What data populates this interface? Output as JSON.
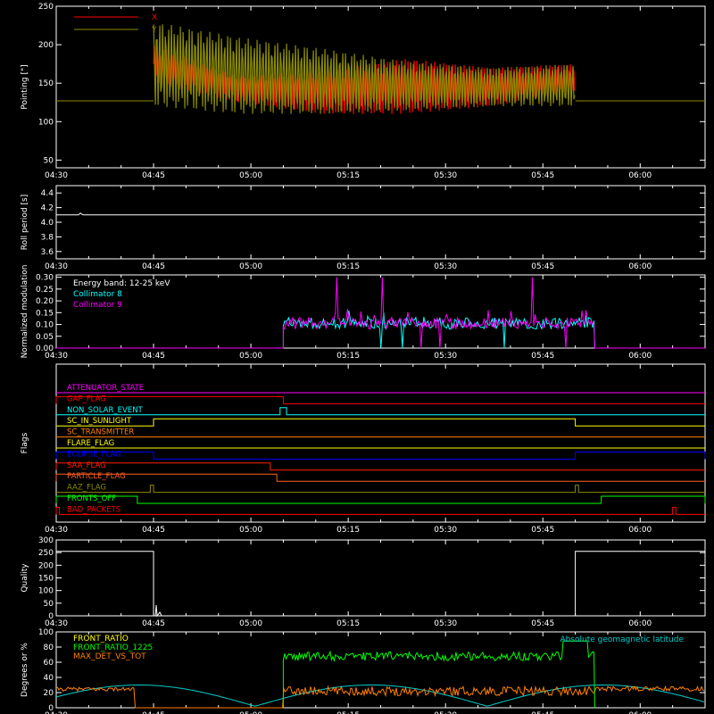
{
  "x_ticks": [
    "04:30",
    "04:45",
    "05:00",
    "05:15",
    "05:30",
    "05:45",
    "06:00"
  ],
  "chart_data": [
    {
      "id": "pointing",
      "type": "line",
      "ylabel": "Pointing [\"]",
      "yticks": [
        "50",
        "100",
        "150",
        "200",
        "250"
      ],
      "ylim": [
        40,
        250
      ],
      "series": [
        {
          "name": "X",
          "color": "#ff0000"
        },
        {
          "name": "Y",
          "color": "#8b8b00"
        }
      ],
      "baseline": 127,
      "x_start": "04:45",
      "x_end": "05:50",
      "x_envelope": [
        [
          150,
          200
        ],
        [
          125,
          160
        ],
        [
          110,
          165
        ],
        [
          110,
          182
        ],
        [
          120,
          170
        ],
        [
          140,
          175
        ]
      ],
      "y_envelope": [
        [
          120,
          230
        ],
        [
          110,
          210
        ],
        [
          110,
          195
        ],
        [
          115,
          178
        ],
        [
          120,
          170
        ],
        [
          120,
          175
        ]
      ]
    },
    {
      "id": "roll",
      "type": "line",
      "ylabel": "Roll period [s]",
      "yticks": [
        "3.6",
        "3.8",
        "4.0",
        "4.2",
        "4.4"
      ],
      "ylim": [
        3.5,
        4.5
      ],
      "series": [
        {
          "name": "",
          "color": "#ffffff",
          "value": 4.1
        }
      ]
    },
    {
      "id": "modulation",
      "type": "line",
      "ylabel": "Normalized modulation",
      "yticks": [
        "0.00",
        "0.05",
        "0.10",
        "0.15",
        "0.20",
        "0.25",
        "0.30"
      ],
      "ylim": [
        0,
        0.31
      ],
      "annotation": "Energy band: 12-25 keV",
      "series": [
        {
          "name": "Collimator 8",
          "color": "#00ffff"
        },
        {
          "name": "Collimator 9",
          "color": "#ff00ff"
        }
      ],
      "active_start": "05:05",
      "active_end": "05:53",
      "mean": 0.1
    },
    {
      "id": "flags",
      "type": "line",
      "ylabel": "Flags",
      "flags": [
        {
          "name": "ATTENUATOR_STATE",
          "color": "#ff00ff"
        },
        {
          "name": "GAP_FLAG",
          "color": "#ff0000"
        },
        {
          "name": "NON_SOLAR_EVENT",
          "color": "#00ffff"
        },
        {
          "name": "SC_IN_SUNLIGHT",
          "color": "#ffff00"
        },
        {
          "name": "SC_TRANSMITTER",
          "color": "#ff8000"
        },
        {
          "name": "FLARE_FLAG",
          "color": "#ffff00"
        },
        {
          "name": "ECLIPSE_FLAG",
          "color": "#0000ff"
        },
        {
          "name": "SAA_FLAG",
          "color": "#ff2000"
        },
        {
          "name": "PARTICLE_FLAG",
          "color": "#ff6020"
        },
        {
          "name": "AAZ_FLAG",
          "color": "#8b8b00"
        },
        {
          "name": "FRONTS_OFF",
          "color": "#00ff00"
        },
        {
          "name": "BAD_PACKETS",
          "color": "#ff0000"
        }
      ]
    },
    {
      "id": "quality",
      "type": "line",
      "ylabel": "Quality",
      "yticks": [
        "0",
        "50",
        "100",
        "150",
        "200",
        "250",
        "300"
      ],
      "ylim": [
        0,
        300
      ],
      "series": [
        {
          "name": "",
          "color": "#ffffff"
        }
      ],
      "high_value": 255
    },
    {
      "id": "ratios",
      "type": "line",
      "ylabel": "Degrees or %",
      "yticks": [
        "0",
        "20",
        "40",
        "60",
        "80",
        "100"
      ],
      "ylim": [
        0,
        100
      ],
      "series": [
        {
          "name": "FRONT_RATIO",
          "color": "#ffff00"
        },
        {
          "name": "FRONT_RATIO_1225",
          "color": "#00ff00"
        },
        {
          "name": "MAX_DET_VS_TOT",
          "color": "#ff8000"
        },
        {
          "name": "Absolute geomagnetic latitude",
          "color": "#00cccc"
        }
      ]
    }
  ]
}
